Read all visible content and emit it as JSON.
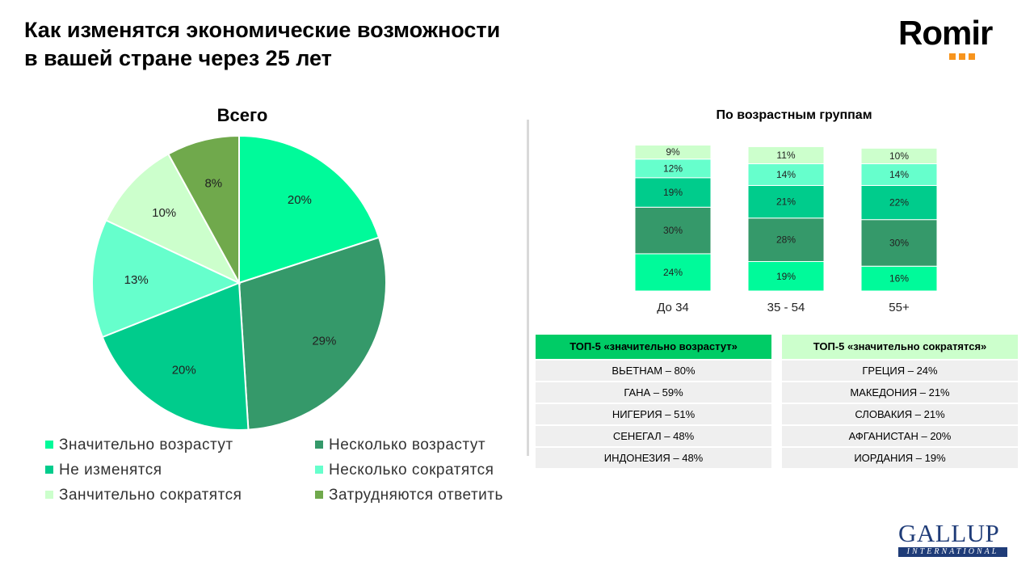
{
  "title_line1": "Как изменятся экономические возможности",
  "title_line2": "в вашей стране через 25 лет",
  "logo": {
    "romir": "Romir",
    "gallup": "GALLUP",
    "gallup_sub": "INTERNATIONAL"
  },
  "colors": {
    "c1": "#00fa9a",
    "c2": "#35996a",
    "c3": "#00cc8c",
    "c4": "#66ffcc",
    "c5": "#ccffcc",
    "c6": "#70a94c",
    "top_green": "#00cc66",
    "top_light": "#ccffcc"
  },
  "chart_data": [
    {
      "type": "pie",
      "title": "Всего",
      "categories": [
        "Значительно возрастут",
        "Несколько возрастут",
        "Не изменятся",
        "Несколько сократятся",
        "Занчительно сократятся",
        "Затрудняются ответить"
      ],
      "values": [
        20,
        29,
        20,
        13,
        10,
        8
      ],
      "labels": [
        "20%",
        "29%",
        "20%",
        "13%",
        "10%",
        "8%"
      ]
    },
    {
      "type": "bar",
      "stacked": true,
      "title": "По возрастным группам",
      "categories": [
        "До 34",
        "35 - 54",
        "55+"
      ],
      "series": [
        {
          "name": "Значительно возрастут",
          "values": [
            24,
            19,
            16
          ],
          "labels": [
            "24%",
            "19%",
            "16%"
          ]
        },
        {
          "name": "Несколько возрастут",
          "values": [
            30,
            28,
            30
          ],
          "labels": [
            "30%",
            "28%",
            "30%"
          ]
        },
        {
          "name": "Не изменятся",
          "values": [
            19,
            21,
            22
          ],
          "labels": [
            "19%",
            "21%",
            "22%"
          ]
        },
        {
          "name": "Несколько сократятся",
          "values": [
            12,
            14,
            14
          ],
          "labels": [
            "12%",
            "14%",
            "14%"
          ]
        },
        {
          "name": "Занчительно сократятся",
          "values": [
            9,
            11,
            10
          ],
          "labels": [
            "9%",
            "11%",
            "10%"
          ]
        }
      ]
    }
  ],
  "legend": [
    {
      "label": "Значительно возрастут",
      "color": "#00fa9a"
    },
    {
      "label": "Несколько возрастут",
      "color": "#35996a"
    },
    {
      "label": "Не изменятся",
      "color": "#00cc8c"
    },
    {
      "label": "Несколько сократятся",
      "color": "#66ffcc"
    },
    {
      "label": "Занчительно сократятся",
      "color": "#ccffcc"
    },
    {
      "label": "Затрудняются ответить",
      "color": "#70a94c"
    }
  ],
  "top_increase": {
    "header": "ТОП-5 «значительно возрастут»",
    "rows": [
      "ВЬЕТНАМ – 80%",
      "ГАНА – 59%",
      "НИГЕРИЯ – 51%",
      "СЕНЕГАЛ – 48%",
      "ИНДОНЕЗИЯ – 48%"
    ]
  },
  "top_decrease": {
    "header": "ТОП-5 «значительно сократятся»",
    "rows": [
      "ГРЕЦИЯ – 24%",
      "МАКЕДОНИЯ – 21%",
      "СЛОВАКИЯ – 21%",
      "АФГАНИСТАН – 20%",
      "ИОРДАНИЯ – 19%"
    ]
  }
}
